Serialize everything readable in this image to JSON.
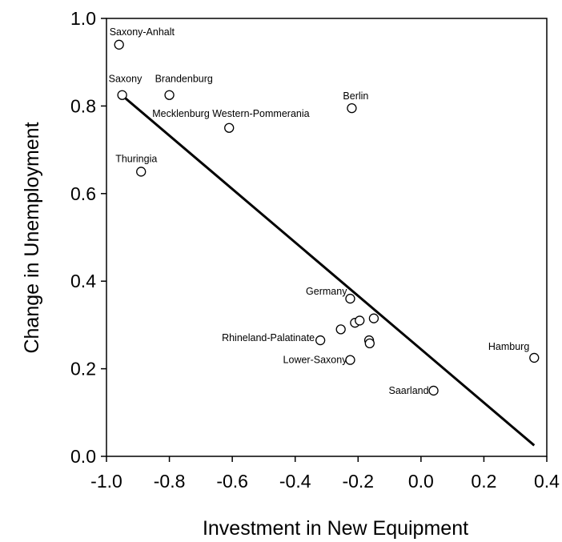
{
  "chart_data": {
    "type": "scatter",
    "title": "",
    "xlabel": "Investment in New Equipment",
    "ylabel": "Change in Unemployment",
    "xlim": [
      -1.0,
      0.4
    ],
    "ylim": [
      0.0,
      1.0
    ],
    "xticks": [
      "-1.0",
      "-0.8",
      "-0.6",
      "-0.4",
      "-0.2",
      "0.0",
      "0.2",
      "0.4"
    ],
    "yticks": [
      "0.0",
      "0.2",
      "0.4",
      "0.6",
      "0.8",
      "1.0"
    ],
    "grid": false,
    "points": [
      {
        "x": -0.96,
        "y": 0.94,
        "label": "Saxony-Anhalt"
      },
      {
        "x": -0.95,
        "y": 0.825,
        "label": "Saxony"
      },
      {
        "x": -0.8,
        "y": 0.825,
        "label": "Brandenburg"
      },
      {
        "x": -0.61,
        "y": 0.75,
        "label": "Mecklenburg Western-Pommerania"
      },
      {
        "x": -0.22,
        "y": 0.795,
        "label": "Berlin"
      },
      {
        "x": -0.89,
        "y": 0.65,
        "label": "Thuringia"
      },
      {
        "x": -0.225,
        "y": 0.36,
        "label": "Germany"
      },
      {
        "x": -0.32,
        "y": 0.265,
        "label": "Rhineland-Palatinate"
      },
      {
        "x": -0.225,
        "y": 0.22,
        "label": "Lower-Saxony"
      },
      {
        "x": 0.04,
        "y": 0.15,
        "label": "Saarland"
      },
      {
        "x": 0.36,
        "y": 0.225,
        "label": "Hamburg"
      },
      {
        "x": -0.255,
        "y": 0.29,
        "label": ""
      },
      {
        "x": -0.21,
        "y": 0.305,
        "label": ""
      },
      {
        "x": -0.195,
        "y": 0.31,
        "label": ""
      },
      {
        "x": -0.15,
        "y": 0.315,
        "label": ""
      },
      {
        "x": -0.165,
        "y": 0.265,
        "label": ""
      },
      {
        "x": -0.163,
        "y": 0.258,
        "label": ""
      }
    ],
    "fit_line": {
      "x": [
        -0.96,
        0.36
      ],
      "y": [
        0.83,
        0.025
      ]
    }
  }
}
